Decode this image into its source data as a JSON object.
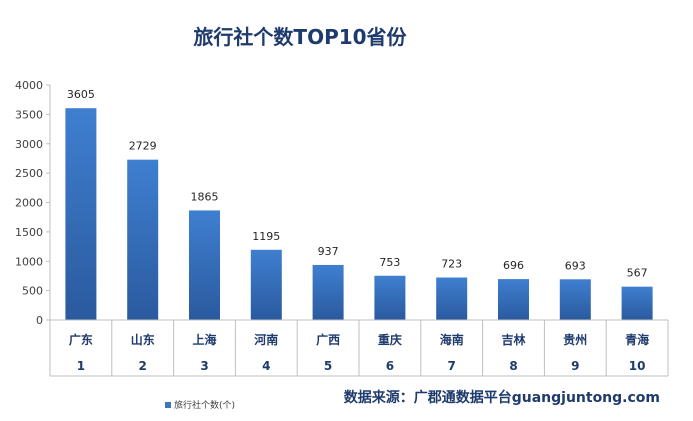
{
  "chart_data": {
    "type": "bar",
    "title": "旅行社个数TOP10省份",
    "categories": [
      "广东",
      "山东",
      "上海",
      "河南",
      "广西",
      "重庆",
      "海南",
      "吉林",
      "贵州",
      "青海"
    ],
    "ranks": [
      "1",
      "2",
      "3",
      "4",
      "5",
      "6",
      "7",
      "8",
      "9",
      "10"
    ],
    "series": [
      {
        "name": "旅行社个数(个)",
        "values": [
          3605,
          2729,
          1865,
          1195,
          937,
          753,
          723,
          696,
          693,
          567
        ]
      }
    ],
    "ylim": [
      0,
      4000
    ],
    "yticks": [
      0,
      500,
      1000,
      1500,
      2000,
      2500,
      3000,
      3500,
      4000
    ],
    "grid": false,
    "legend": "bottom-left",
    "bar_color": "#3a78c4"
  },
  "source_text": "数据来源：广郡通数据平台guangjuntong.com"
}
